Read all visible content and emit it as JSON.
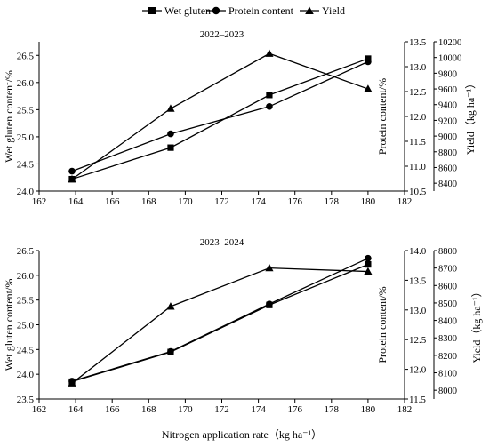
{
  "legend": {
    "items": [
      {
        "label": "Wet gluten",
        "marker": "square"
      },
      {
        "label": "Protein content",
        "marker": "circle"
      },
      {
        "label": "Yield",
        "marker": "triangle"
      }
    ]
  },
  "xaxis_label": "Nitrogen application rate（kg ha⁻¹）",
  "chart_data": [
    {
      "type": "line",
      "title": "2022–2023",
      "x": [
        163.8,
        169.2,
        174.6,
        180.0
      ],
      "series": [
        {
          "name": "Wet gluten",
          "axis": "left",
          "marker": "square",
          "values": [
            24.22,
            24.8,
            25.77,
            26.44
          ]
        },
        {
          "name": "Protein content",
          "axis": "right1",
          "marker": "circle",
          "values": [
            10.9,
            11.65,
            12.2,
            13.1
          ]
        },
        {
          "name": "Yield",
          "axis": "right2",
          "marker": "triangle",
          "values": [
            8450,
            9350,
            10050,
            9600
          ]
        }
      ],
      "xlim": [
        162,
        182
      ],
      "xticks": [
        "162",
        "164",
        "166",
        "168",
        "170",
        "172",
        "174",
        "176",
        "178",
        "180",
        "182"
      ],
      "left_axis": {
        "label": "Wet gluten content/%",
        "lim": [
          24.0,
          26.75
        ],
        "ticks": [
          "24.0",
          "24.5",
          "25.0",
          "25.5",
          "26.0",
          "26.5"
        ]
      },
      "right1_axis": {
        "label": "Protein content/%",
        "lim": [
          10.5,
          13.5
        ],
        "ticks": [
          "10.5",
          "11.0",
          "11.5",
          "12.0",
          "12.5",
          "13.0",
          "13.5"
        ]
      },
      "right2_axis": {
        "label": "Yield（kg ha⁻¹）",
        "lim": [
          8300,
          10200
        ],
        "ticks": [
          "8400",
          "8600",
          "8800",
          "9000",
          "9200",
          "9400",
          "9600",
          "9800",
          "10000",
          "10200"
        ]
      },
      "grid": false
    },
    {
      "type": "line",
      "title": "2023–2024",
      "x": [
        163.8,
        169.2,
        174.6,
        180.0
      ],
      "series": [
        {
          "name": "Wet gluten",
          "axis": "left",
          "marker": "square",
          "values": [
            23.85,
            24.45,
            25.4,
            26.22
          ]
        },
        {
          "name": "Protein content",
          "axis": "right1",
          "marker": "circle",
          "values": [
            11.8,
            12.3,
            13.1,
            13.87
          ]
        },
        {
          "name": "Yield",
          "axis": "right2",
          "marker": "triangle",
          "values": [
            8040,
            8480,
            8700,
            8680
          ]
        }
      ],
      "xlim": [
        162,
        182
      ],
      "xticks": [
        "162",
        "164",
        "166",
        "168",
        "170",
        "172",
        "174",
        "176",
        "178",
        "180",
        "182"
      ],
      "left_axis": {
        "label": "Wet gluten content/%",
        "lim": [
          23.5,
          26.5
        ],
        "ticks": [
          "23.5",
          "24.0",
          "24.5",
          "25.0",
          "25.5",
          "26.0",
          "26.5"
        ]
      },
      "right1_axis": {
        "label": "Protein content/%",
        "lim": [
          11.5,
          14.0
        ],
        "ticks": [
          "11.5",
          "12.0",
          "12.5",
          "13.0",
          "13.5",
          "14.0"
        ]
      },
      "right2_axis": {
        "label": "Yield（kg ha⁻¹）",
        "lim": [
          7950,
          8800
        ],
        "ticks": [
          "8000",
          "8100",
          "8200",
          "8300",
          "8400",
          "8500",
          "8600",
          "8700",
          "8800"
        ]
      },
      "grid": false
    }
  ]
}
